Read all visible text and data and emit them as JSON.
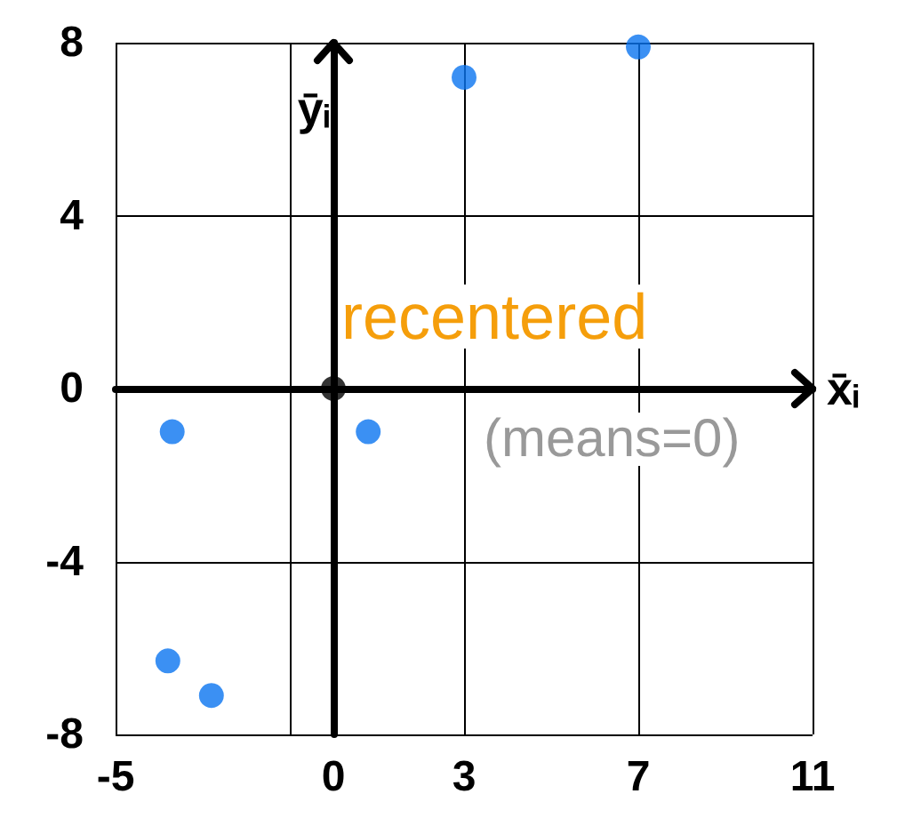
{
  "chart_data": {
    "type": "scatter",
    "xlabel": "x̄ᵢ",
    "ylabel": "ȳᵢ",
    "xlim": [
      -5,
      11
    ],
    "xticks": [
      -5,
      {
        "value": -1,
        "label": null
      },
      0,
      3,
      7,
      11
    ],
    "ylim": [
      -8,
      8
    ],
    "yticks": [
      -8,
      -4,
      0,
      4,
      8
    ],
    "grid": true,
    "marker": "circle",
    "series": [
      {
        "color": "#0a74f0",
        "x": [
          7,
          3,
          -3.7,
          0.8,
          -3.8,
          -2.8
        ],
        "values": [
          7.9,
          7.2,
          -1.0,
          -1.0,
          -6.3,
          -7.1
        ]
      },
      {
        "color": "#000000",
        "x": [
          0
        ],
        "values": [
          0
        ]
      }
    ],
    "annotations": [
      "recentered",
      "(means=0)"
    ]
  }
}
